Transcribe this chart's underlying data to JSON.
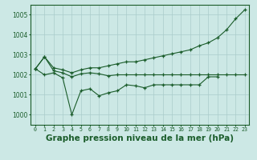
{
  "x": [
    0,
    1,
    2,
    3,
    4,
    5,
    6,
    7,
    8,
    9,
    10,
    11,
    12,
    13,
    14,
    15,
    16,
    17,
    18,
    19,
    20,
    21,
    22,
    23
  ],
  "series1": [
    1002.3,
    1002.9,
    1002.2,
    1002.1,
    1001.9,
    1002.05,
    1002.1,
    1002.05,
    1001.95,
    1002.0,
    1002.0,
    1002.0,
    1002.0,
    1002.0,
    1002.0,
    1002.0,
    1002.0,
    1002.0,
    1002.0,
    1002.0,
    1002.0,
    1002.0,
    1002.0,
    1002.0
  ],
  "series2": [
    1002.3,
    1002.0,
    1002.1,
    1001.85,
    1000.0,
    1001.2,
    1001.3,
    1000.95,
    1001.1,
    1001.2,
    1001.5,
    1001.45,
    1001.35,
    1001.5,
    1001.5,
    1001.5,
    1001.5,
    1001.5,
    1001.5,
    1001.9,
    1001.9,
    null,
    null,
    null
  ],
  "series3": [
    1002.3,
    1002.9,
    1002.35,
    1002.25,
    1002.1,
    1002.25,
    1002.35,
    1002.35,
    1002.45,
    1002.55,
    1002.65,
    1002.65,
    1002.75,
    1002.85,
    1002.95,
    1003.05,
    1003.15,
    1003.25,
    1003.45,
    1003.6,
    1003.85,
    1004.25,
    1004.8,
    1005.25
  ],
  "ylim": [
    999.5,
    1005.5
  ],
  "yticks": [
    1000,
    1001,
    1002,
    1003,
    1004,
    1005
  ],
  "xlim": [
    -0.5,
    23.5
  ],
  "bg_color": "#cce8e5",
  "grid_color": "#aaccca",
  "line_color": "#1a5c2a",
  "xlabel": "Graphe pression niveau de la mer (hPa)",
  "xlabel_fontsize": 7.5
}
